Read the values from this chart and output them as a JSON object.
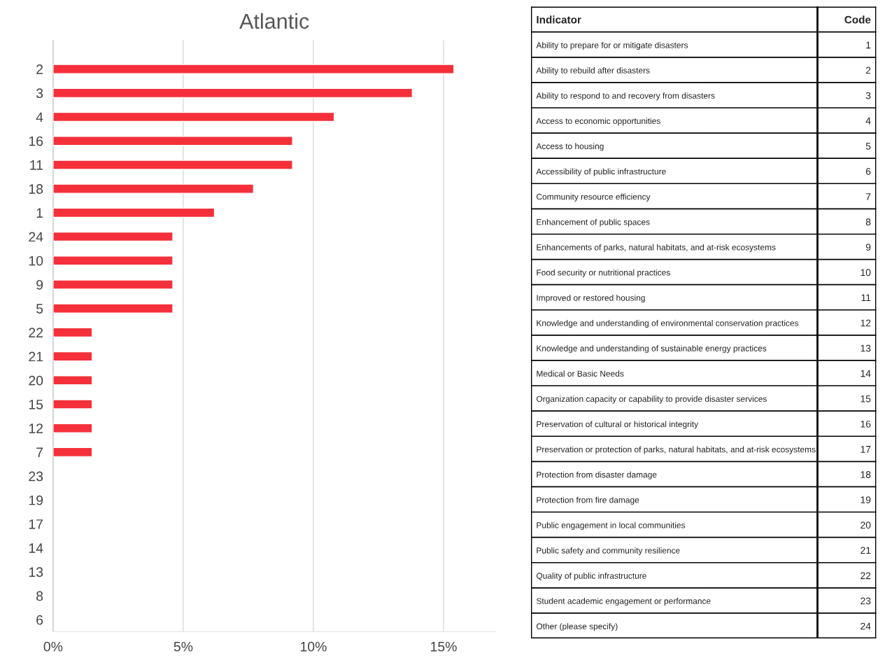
{
  "chart_data": [
    {
      "type": "bar",
      "orientation": "horizontal",
      "title": "Atlantic",
      "categories": [
        "2",
        "3",
        "4",
        "16",
        "11",
        "18",
        "1",
        "24",
        "10",
        "9",
        "5",
        "22",
        "21",
        "20",
        "15",
        "12",
        "7",
        "23",
        "19",
        "17",
        "14",
        "13",
        "8",
        "6"
      ],
      "values": [
        15.4,
        13.8,
        10.8,
        9.2,
        9.2,
        7.7,
        6.2,
        4.6,
        4.6,
        4.6,
        4.6,
        1.5,
        1.5,
        1.5,
        1.5,
        1.5,
        1.5,
        0,
        0,
        0,
        0,
        0,
        0,
        0
      ],
      "color": "#f5303a",
      "xlim": [
        0,
        17
      ],
      "xticks": [
        {
          "value": 0,
          "label": "0%"
        },
        {
          "value": 5,
          "label": "5%"
        },
        {
          "value": 10,
          "label": "10%"
        },
        {
          "value": 15,
          "label": "15%"
        }
      ],
      "grid": "x",
      "legend": false
    },
    {
      "type": "other",
      "annotations": [
        "Indicator",
        "Code"
      ],
      "categories": [
        "Ability to prepare for or mitigate disasters",
        "Ability to rebuild after disasters",
        "Ability to respond to and recovery from disasters",
        "Access to economic opportunities",
        "Access to housing",
        "Accessibility of public infrastructure",
        "Community resource efficiency",
        "Enhancement of public spaces",
        "Enhancements of parks, natural habitats, and at-risk ecosystems",
        "Food security or nutritional practices",
        "Improved or restored housing",
        "Knowledge and understanding of environmental conservation practices",
        "Knowledge and understanding of sustainable energy practices",
        "Medical or Basic Needs",
        "Organization capacity or capability to provide disaster services",
        "Preservation of cultural or historical integrity",
        "Preservation or protection of parks, natural habitats, and at-risk ecosystems",
        "Protection from disaster damage",
        "Protection from fire damage",
        "Public engagement in local communities",
        "Public safety and community resilience",
        "Quality of public infrastructure",
        "Student academic engagement or performance",
        "Other (please specify)"
      ],
      "values": [
        1,
        2,
        3,
        4,
        5,
        6,
        7,
        8,
        9,
        10,
        11,
        12,
        13,
        14,
        15,
        16,
        17,
        18,
        19,
        20,
        21,
        22,
        23,
        24
      ],
      "data_labels": true
    }
  ]
}
